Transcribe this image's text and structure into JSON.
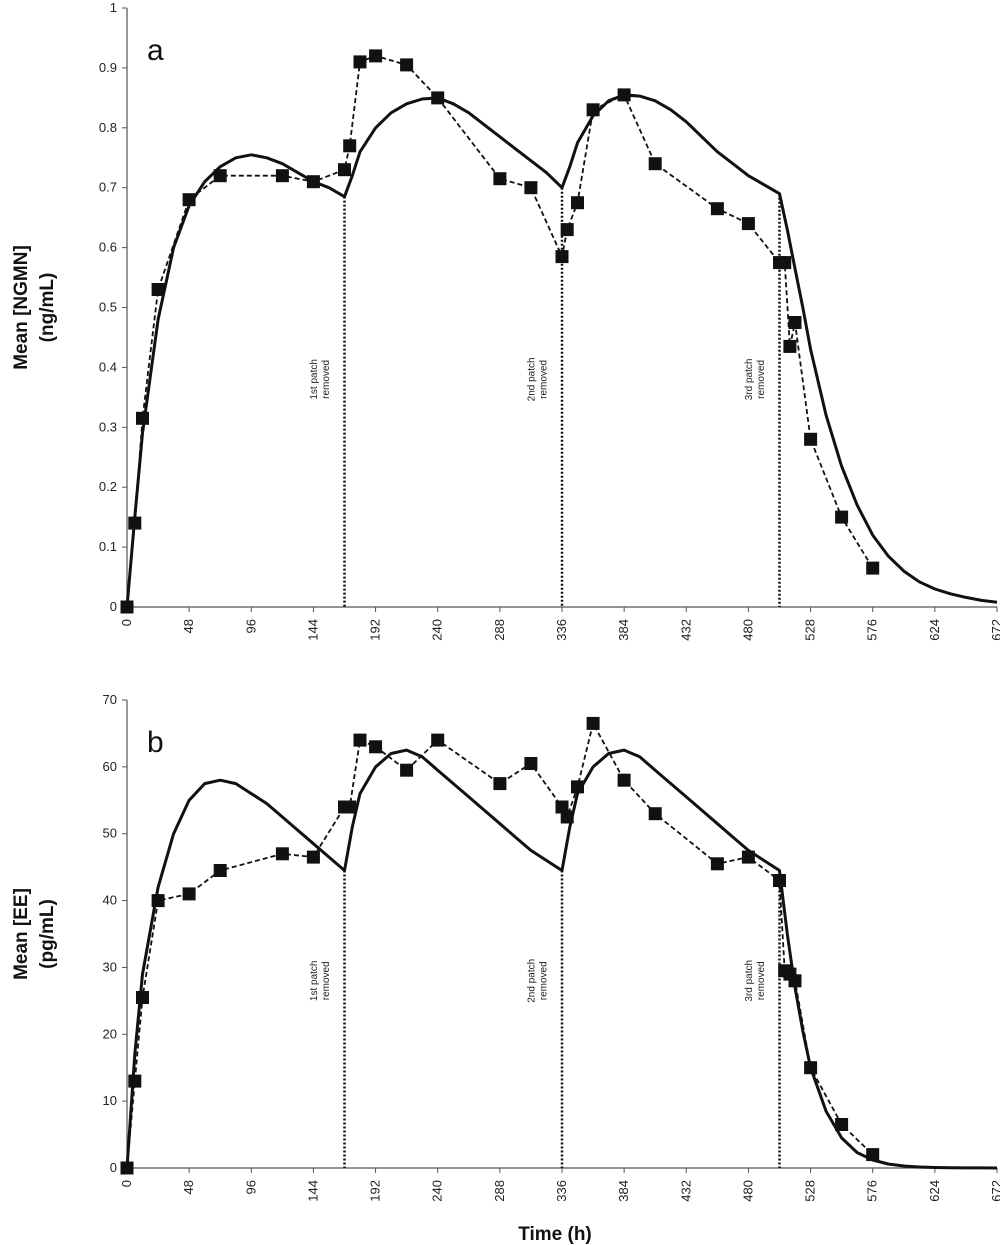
{
  "xlabel": "Time (h)",
  "chart_data": [
    {
      "type": "line",
      "panel_label": "a",
      "ylabel_line1": "Mean [NGMN]",
      "ylabel_line2": "(ng/mL)",
      "xlabel": "",
      "xlim": [
        0,
        672
      ],
      "ylim": [
        0,
        1
      ],
      "xticks": [
        0,
        48,
        96,
        144,
        192,
        240,
        288,
        336,
        384,
        432,
        480,
        528,
        576,
        624,
        672
      ],
      "xtick_labels": [
        "0",
        "48",
        "96",
        "144",
        "192",
        "240",
        "288",
        "336",
        "384",
        "432",
        "480",
        "528",
        "576",
        "624",
        "672"
      ],
      "yticks": [
        0,
        0.1,
        0.2,
        0.3,
        0.4,
        0.5,
        0.6,
        0.7,
        0.8,
        0.9,
        1
      ],
      "ytick_labels": [
        "0",
        "0.1",
        "0.2",
        "0.3",
        "0.4",
        "0.5",
        "0.6",
        "0.7",
        "0.8",
        "0.9",
        "1"
      ],
      "grid": false,
      "legend": "none",
      "series": [
        {
          "style": "dashed line with square markers",
          "x": [
            0,
            6,
            12,
            24,
            48,
            72,
            120,
            144,
            168,
            172,
            180,
            192,
            216,
            240,
            288,
            312,
            336,
            340,
            348,
            360,
            384,
            408,
            456,
            480,
            504,
            508,
            512,
            516,
            528,
            552,
            576
          ],
          "y": [
            0,
            0.14,
            0.315,
            0.53,
            0.68,
            0.72,
            0.72,
            0.71,
            0.73,
            0.77,
            0.91,
            0.92,
            0.905,
            0.85,
            0.715,
            0.7,
            0.585,
            0.63,
            0.675,
            0.83,
            0.855,
            0.74,
            0.665,
            0.64,
            0.575,
            0.575,
            0.435,
            0.475,
            0.28,
            0.15,
            0.065
          ]
        },
        {
          "style": "solid line",
          "x": [
            0,
            6,
            12,
            24,
            36,
            48,
            60,
            72,
            84,
            96,
            108,
            120,
            132,
            144,
            156,
            168,
            174,
            180,
            192,
            204,
            216,
            228,
            240,
            252,
            264,
            276,
            288,
            300,
            312,
            324,
            336,
            342,
            348,
            360,
            372,
            384,
            396,
            408,
            420,
            432,
            444,
            456,
            468,
            480,
            492,
            504,
            510,
            516,
            522,
            528,
            540,
            552,
            564,
            576,
            588,
            600,
            612,
            624,
            636,
            648,
            660,
            672
          ],
          "y": [
            0,
            0.15,
            0.29,
            0.48,
            0.6,
            0.67,
            0.71,
            0.735,
            0.75,
            0.755,
            0.75,
            0.74,
            0.725,
            0.71,
            0.7,
            0.685,
            0.72,
            0.76,
            0.8,
            0.825,
            0.84,
            0.848,
            0.85,
            0.84,
            0.825,
            0.805,
            0.785,
            0.765,
            0.745,
            0.725,
            0.7,
            0.735,
            0.775,
            0.82,
            0.845,
            0.855,
            0.853,
            0.845,
            0.83,
            0.81,
            0.785,
            0.76,
            0.74,
            0.72,
            0.705,
            0.69,
            0.63,
            0.565,
            0.5,
            0.43,
            0.32,
            0.235,
            0.17,
            0.12,
            0.085,
            0.06,
            0.042,
            0.03,
            0.022,
            0.016,
            0.011,
            0.008
          ]
        }
      ],
      "vlines": [
        {
          "x": 168,
          "annotation_line1": "1st patch",
          "annotation_line2": "removed"
        },
        {
          "x": 336,
          "annotation_line1": "2nd patch",
          "annotation_line2": "removed"
        },
        {
          "x": 504,
          "annotation_line1": "3rd patch",
          "annotation_line2": "removed"
        }
      ]
    },
    {
      "type": "line",
      "panel_label": "b",
      "ylabel_line1": "Mean [EE]",
      "ylabel_line2": "(pg/mL)",
      "xlabel": "Time (h)",
      "xlim": [
        0,
        672
      ],
      "ylim": [
        0,
        70
      ],
      "xticks": [
        0,
        48,
        96,
        144,
        192,
        240,
        288,
        336,
        384,
        432,
        480,
        528,
        576,
        624,
        672
      ],
      "xtick_labels": [
        "0",
        "48",
        "96",
        "144",
        "192",
        "240",
        "288",
        "336",
        "384",
        "432",
        "480",
        "528",
        "576",
        "624",
        "672"
      ],
      "yticks": [
        0,
        10,
        20,
        30,
        40,
        50,
        60,
        70
      ],
      "ytick_labels": [
        "0",
        "10",
        "20",
        "30",
        "40",
        "50",
        "60",
        "70"
      ],
      "grid": false,
      "legend": "none",
      "series": [
        {
          "style": "dashed line with square markers",
          "x": [
            0,
            6,
            12,
            24,
            48,
            72,
            120,
            144,
            168,
            172,
            180,
            192,
            216,
            240,
            288,
            312,
            336,
            340,
            348,
            360,
            384,
            408,
            456,
            480,
            504,
            508,
            512,
            516,
            528,
            552,
            576
          ],
          "y": [
            0,
            13,
            25.5,
            40,
            41,
            44.5,
            47,
            46.5,
            54,
            54,
            64,
            63,
            59.5,
            64,
            57.5,
            60.5,
            54,
            52.5,
            57,
            66.5,
            58,
            53,
            45.5,
            46.5,
            43,
            29.5,
            29,
            28,
            15,
            6.5,
            2
          ]
        },
        {
          "style": "solid line",
          "x": [
            0,
            6,
            12,
            24,
            36,
            48,
            60,
            72,
            84,
            96,
            108,
            120,
            132,
            144,
            156,
            168,
            174,
            180,
            192,
            204,
            216,
            228,
            240,
            252,
            264,
            276,
            288,
            300,
            312,
            324,
            336,
            342,
            348,
            360,
            372,
            384,
            396,
            408,
            420,
            432,
            444,
            456,
            468,
            480,
            492,
            504,
            510,
            516,
            522,
            528,
            540,
            552,
            564,
            576,
            588,
            600,
            612,
            624,
            636,
            648,
            660,
            672
          ],
          "y": [
            0,
            17,
            29,
            42,
            50,
            55,
            57.5,
            58,
            57.5,
            56,
            54.5,
            52.5,
            50.5,
            48.5,
            46.5,
            44.5,
            51,
            56,
            60,
            62,
            62.5,
            61.5,
            59.5,
            57.5,
            55.5,
            53.5,
            51.5,
            49.5,
            47.5,
            46,
            44.5,
            51,
            56,
            60,
            62,
            62.5,
            61.5,
            59.5,
            57.5,
            55.5,
            53.5,
            51.5,
            49.5,
            47.5,
            46,
            44.5,
            35,
            27,
            20.5,
            15,
            8.5,
            4.5,
            2.3,
            1.2,
            0.6,
            0.3,
            0.15,
            0.08,
            0.04,
            0.02,
            0.01,
            0.005
          ]
        }
      ],
      "vlines": [
        {
          "x": 168,
          "annotation_line1": "1st patch",
          "annotation_line2": "removed"
        },
        {
          "x": 336,
          "annotation_line1": "2nd patch",
          "annotation_line2": "removed"
        },
        {
          "x": 504,
          "annotation_line1": "3rd patch",
          "annotation_line2": "removed"
        }
      ]
    }
  ]
}
